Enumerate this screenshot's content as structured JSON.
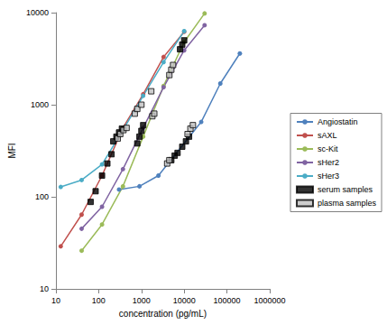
{
  "chart_data": {
    "type": "line",
    "log": true,
    "grid": false,
    "legend": "right",
    "xlabel": "concentration (pg/mL)",
    "ylabel": "MFI",
    "xlim": [
      10,
      1000000
    ],
    "xticks": [
      10,
      100,
      1000,
      10000,
      100000,
      1000000
    ],
    "ylim": [
      10,
      10000
    ],
    "yticks": [
      10,
      100,
      1000,
      10000
    ],
    "series": [
      {
        "name": "Angiostatin",
        "type": "line",
        "marker": "circle",
        "color": "#4f81bd",
        "x": [
          300,
          900,
          2500,
          25000,
          70000,
          200000
        ],
        "values": [
          120,
          130,
          170,
          650,
          1700,
          3600
        ]
      },
      {
        "name": "sAXL",
        "type": "line",
        "marker": "circle",
        "color": "#c0504d",
        "x": [
          13,
          40,
          120,
          370,
          1100,
          3300,
          10000
        ],
        "values": [
          29,
          64,
          170,
          560,
          1300,
          3300,
          6200
        ]
      },
      {
        "name": "sc-Kit",
        "type": "line",
        "marker": "circle",
        "color": "#9bbb59",
        "x": [
          40,
          120,
          370,
          1100,
          3300,
          10000,
          30000
        ],
        "values": [
          26,
          50,
          130,
          450,
          1600,
          4800,
          9800
        ]
      },
      {
        "name": "sHer2",
        "type": "line",
        "marker": "circle",
        "color": "#8064a2",
        "x": [
          40,
          120,
          370,
          1100,
          3300,
          10000,
          30000
        ],
        "values": [
          45,
          78,
          200,
          560,
          1550,
          3900,
          7300
        ]
      },
      {
        "name": "sHer3",
        "type": "line",
        "marker": "circle",
        "color": "#4bacc6",
        "x": [
          13,
          40,
          120,
          370,
          1100,
          3300,
          10000
        ],
        "values": [
          128,
          152,
          225,
          530,
          1250,
          2900,
          6300
        ]
      },
      {
        "name": "serum samples",
        "type": "scatter",
        "marker": "square",
        "color": "#000000",
        "x": [
          65,
          85,
          120,
          160,
          200,
          220,
          260,
          300,
          350,
          800,
          900,
          1000,
          1100,
          8000,
          9000,
          10000,
          5000,
          6000,
          7000,
          9000,
          11000,
          13000
        ],
        "values": [
          88,
          115,
          170,
          230,
          290,
          400,
          450,
          500,
          550,
          380,
          450,
          520,
          600,
          4000,
          4500,
          5000,
          250,
          280,
          300,
          350,
          400,
          450
        ]
      },
      {
        "name": "plasma samples",
        "type": "scatter",
        "marker": "square",
        "color": "#c0c0c0",
        "x": [
          280,
          320,
          380,
          450,
          700,
          800,
          1000,
          1700,
          1800,
          2000,
          4500,
          5000,
          5500,
          4000,
          4500,
          12000,
          14000,
          16000
        ],
        "values": [
          430,
          480,
          530,
          560,
          800,
          900,
          1000,
          1400,
          750,
          800,
          2100,
          2400,
          2700,
          230,
          250,
          480,
          550,
          600
        ]
      }
    ]
  }
}
